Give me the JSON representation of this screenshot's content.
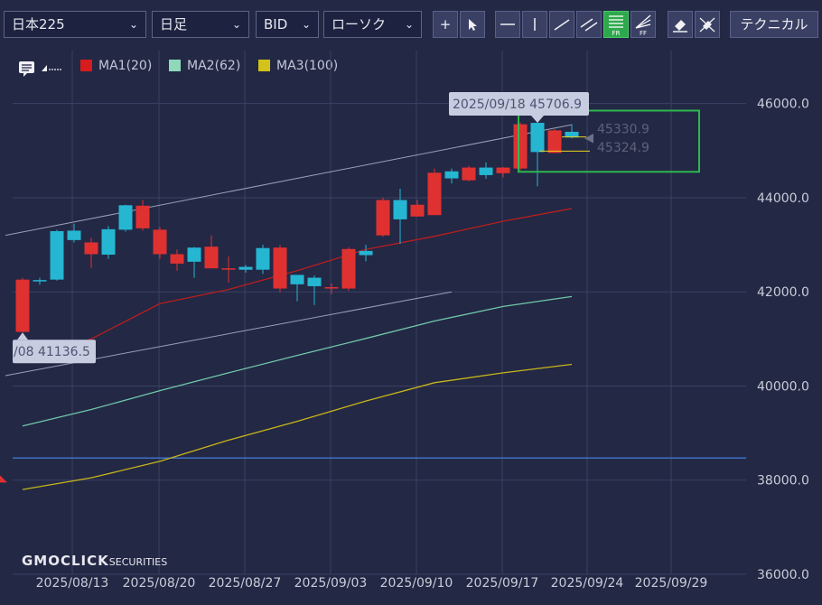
{
  "toolbar": {
    "symbol": "日本225",
    "period": "日足",
    "price_type": "BID",
    "chart_kind": "ローソク",
    "technical_label": "テクニカル",
    "fr_label": "FR",
    "ff_label": "FF"
  },
  "legend": {
    "ma1": "MA1(20)",
    "ma2": "MA2(62)",
    "ma3": "MA3(100)"
  },
  "colors": {
    "up": "#25b6d2",
    "down": "#e03131",
    "ma1": "#b81e1e",
    "ma2": "#6fc7a8",
    "ma3": "#c8b51a",
    "grid": "#3b4164",
    "background": "#232845",
    "highlight_box": "#2eb84f",
    "h_line": "#3f6fc2"
  },
  "brand": {
    "name": "GMOCLICK",
    "sub": "SECURITIES"
  },
  "chart_data": {
    "type": "candlestick",
    "x_labels": [
      "2025/08/13",
      "2025/08/20",
      "2025/08/27",
      "2025/09/03",
      "2025/09/10",
      "2025/09/17",
      "2025/09/24",
      "2025/09/29"
    ],
    "y_ticks": [
      36000,
      38000,
      40000,
      42000,
      44000,
      46000
    ],
    "y_tick_labels": [
      "36000.0",
      "38000.0",
      "40000.0",
      "42000.0",
      "44000.0",
      "46000.0"
    ],
    "ylim": [
      36000,
      46550
    ],
    "candles": [
      {
        "o": 42260,
        "h": 42300,
        "l": 41136.5,
        "c": 41150
      },
      {
        "o": 42230,
        "h": 42300,
        "l": 42150,
        "c": 42250
      },
      {
        "o": 42260,
        "h": 43320,
        "l": 42240,
        "c": 43290
      },
      {
        "o": 43100,
        "h": 43450,
        "l": 43050,
        "c": 43300
      },
      {
        "o": 43050,
        "h": 43150,
        "l": 42500,
        "c": 42800
      },
      {
        "o": 42790,
        "h": 43400,
        "l": 42700,
        "c": 43330
      },
      {
        "o": 43320,
        "h": 43850,
        "l": 43280,
        "c": 43840
      },
      {
        "o": 43830,
        "h": 43950,
        "l": 43300,
        "c": 43350
      },
      {
        "o": 43320,
        "h": 43380,
        "l": 42700,
        "c": 42800
      },
      {
        "o": 42800,
        "h": 42900,
        "l": 42450,
        "c": 42600
      },
      {
        "o": 42640,
        "h": 42950,
        "l": 42300,
        "c": 42940
      },
      {
        "o": 42960,
        "h": 43200,
        "l": 42500,
        "c": 42500
      },
      {
        "o": 42500,
        "h": 42750,
        "l": 42200,
        "c": 42480
      },
      {
        "o": 42470,
        "h": 42570,
        "l": 42410,
        "c": 42530
      },
      {
        "o": 42470,
        "h": 43000,
        "l": 42380,
        "c": 42930
      },
      {
        "o": 42940,
        "h": 43000,
        "l": 41990,
        "c": 42070
      },
      {
        "o": 42160,
        "h": 42270,
        "l": 41800,
        "c": 42360
      },
      {
        "o": 42120,
        "h": 42350,
        "l": 41720,
        "c": 42300
      },
      {
        "o": 42100,
        "h": 42180,
        "l": 41950,
        "c": 42070
      },
      {
        "o": 42910,
        "h": 42950,
        "l": 42020,
        "c": 42070
      },
      {
        "o": 42780,
        "h": 43000,
        "l": 42650,
        "c": 42870
      },
      {
        "o": 43950,
        "h": 44000,
        "l": 43170,
        "c": 43200
      },
      {
        "o": 43540,
        "h": 44190,
        "l": 43020,
        "c": 43950
      },
      {
        "o": 43850,
        "h": 43950,
        "l": 43600,
        "c": 43600
      },
      {
        "o": 44530,
        "h": 44620,
        "l": 43630,
        "c": 43630
      },
      {
        "o": 44410,
        "h": 44620,
        "l": 44300,
        "c": 44560
      },
      {
        "o": 44640,
        "h": 44680,
        "l": 44350,
        "c": 44370
      },
      {
        "o": 44480,
        "h": 44750,
        "l": 44400,
        "c": 44640
      },
      {
        "o": 44640,
        "h": 44650,
        "l": 44430,
        "c": 44520
      },
      {
        "o": 45560,
        "h": 45600,
        "l": 44580,
        "c": 44620
      },
      {
        "o": 44970,
        "h": 45706.9,
        "l": 44240,
        "c": 45590
      },
      {
        "o": 45430,
        "h": 45460,
        "l": 44950,
        "c": 44950
      },
      {
        "o": 45280,
        "h": 45560,
        "l": 45260,
        "c": 45400
      }
    ],
    "ma1": [
      [
        0,
        40530
      ],
      [
        4,
        41000
      ],
      [
        8,
        41750
      ],
      [
        12,
        42050
      ],
      [
        16,
        42450
      ],
      [
        20,
        42900
      ],
      [
        24,
        43180
      ],
      [
        28,
        43500
      ],
      [
        32,
        43770
      ]
    ],
    "ma2": [
      [
        0,
        39150
      ],
      [
        4,
        39500
      ],
      [
        8,
        39900
      ],
      [
        12,
        40280
      ],
      [
        16,
        40650
      ],
      [
        20,
        41010
      ],
      [
        24,
        41380
      ],
      [
        28,
        41690
      ],
      [
        32,
        41900
      ]
    ],
    "ma3": [
      [
        0,
        37800
      ],
      [
        4,
        38050
      ],
      [
        8,
        38400
      ],
      [
        12,
        38850
      ],
      [
        16,
        39250
      ],
      [
        20,
        39680
      ],
      [
        24,
        40070
      ],
      [
        28,
        40280
      ],
      [
        32,
        40460
      ]
    ],
    "channel_upper": [
      [
        -1,
        43200
      ],
      [
        32,
        45550
      ]
    ],
    "channel_lower": [
      [
        -1,
        40220
      ],
      [
        25,
        42000
      ]
    ],
    "h_line": 38470,
    "tooltips": [
      {
        "text": "2025/09/18 45706.9",
        "index": 30
      },
      {
        "text": "/08 41136.5",
        "index": 0
      }
    ],
    "price_labels": [
      "45330.9",
      "45324.9"
    ]
  }
}
